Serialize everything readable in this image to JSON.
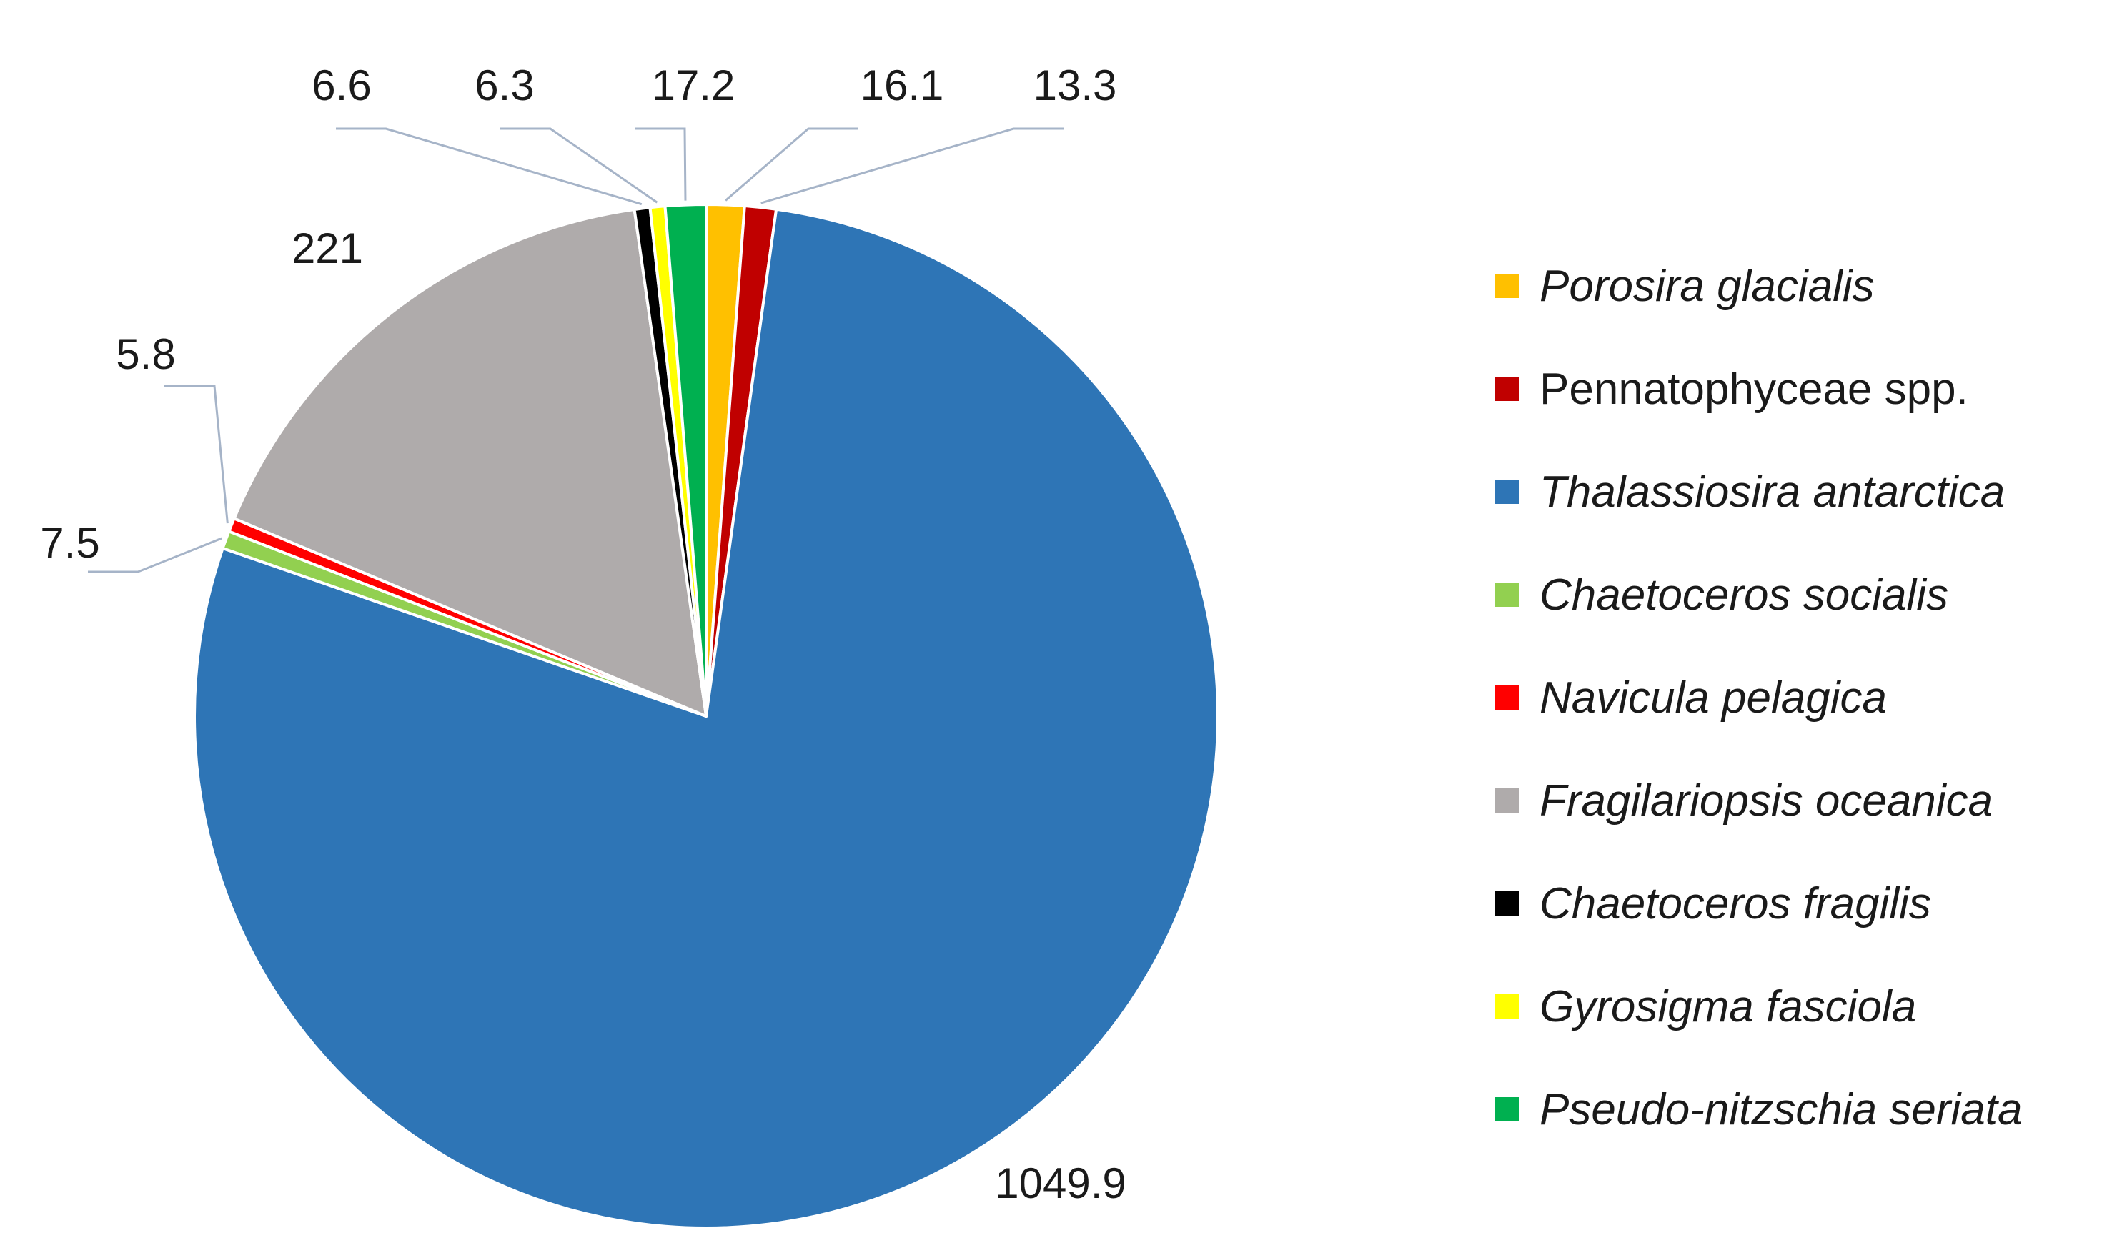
{
  "chart_data": {
    "type": "pie",
    "slices": [
      {
        "name": "Porosira glacialis",
        "value": 16.1,
        "label": "16.1",
        "color": "#FFC000",
        "italic": true
      },
      {
        "name": "Pennatophyceae spp.",
        "value": 13.3,
        "label": "13.3",
        "color": "#C00000",
        "italic": false
      },
      {
        "name": "Thalassiosira antarctica",
        "value": 1049.9,
        "label": "1049.9",
        "color": "#2E75B6",
        "italic": true
      },
      {
        "name": "Chaetoceros socialis",
        "value": 7.5,
        "label": "7.5",
        "color": "#92D050",
        "italic": true
      },
      {
        "name": "Navicula pelagica",
        "value": 5.8,
        "label": "5.8",
        "color": "#FF0000",
        "italic": true
      },
      {
        "name": "Fragilariopsis oceanica",
        "value": 221,
        "label": "221",
        "color": "#AFABAB",
        "italic": true
      },
      {
        "name": "Chaetoceros fragilis",
        "value": 6.6,
        "label": "6.6",
        "color": "#000000",
        "italic": true
      },
      {
        "name": "Gyrosigma fasciola",
        "value": 6.3,
        "label": "6.3",
        "color": "#FFFF00",
        "italic": true
      },
      {
        "name": "Pseudo-nitzschia seriata",
        "value": 17.2,
        "label": "17.2",
        "color": "#00B050",
        "italic": true
      }
    ],
    "legend_position": "right",
    "leader_line_color": "#A6B4C8"
  }
}
